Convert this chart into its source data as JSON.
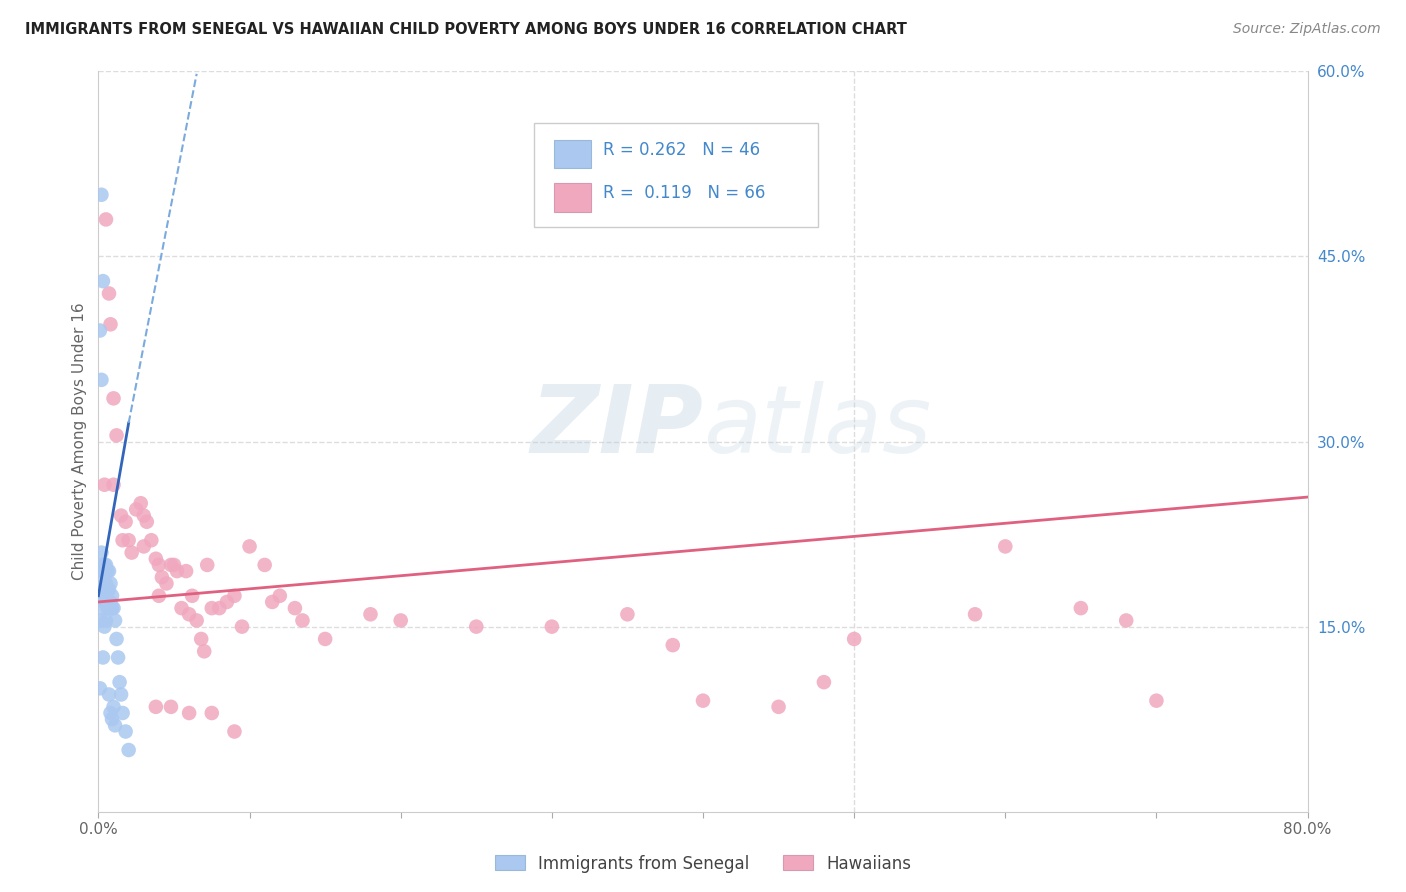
{
  "title": "IMMIGRANTS FROM SENEGAL VS HAWAIIAN CHILD POVERTY AMONG BOYS UNDER 16 CORRELATION CHART",
  "source": "Source: ZipAtlas.com",
  "ylabel": "Child Poverty Among Boys Under 16",
  "xlim": [
    0.0,
    0.8
  ],
  "ylim": [
    0.0,
    0.6
  ],
  "xtick_positions": [
    0.0,
    0.1,
    0.2,
    0.3,
    0.4,
    0.5,
    0.6,
    0.7,
    0.8
  ],
  "xticklabels": [
    "0.0%",
    "",
    "",
    "",
    "",
    "",
    "",
    "",
    "80.0%"
  ],
  "ytick_positions": [
    0.15,
    0.3,
    0.45,
    0.6
  ],
  "ytick_labels": [
    "15.0%",
    "30.0%",
    "45.0%",
    "60.0%"
  ],
  "color_blue": "#aac8f0",
  "color_pink": "#f0a8bf",
  "color_blue_text": "#4488cc",
  "trendline_blue_solid": "#3366bb",
  "trendline_blue_dash": "#7aaade",
  "trendline_pink": "#e06080",
  "grid_color": "#dddddd",
  "background_color": "#ffffff",
  "watermark_color": "#c5d8ec",
  "blue_scatter_x": [
    0.001,
    0.001,
    0.001,
    0.002,
    0.002,
    0.002,
    0.002,
    0.003,
    0.003,
    0.003,
    0.004,
    0.004,
    0.004,
    0.004,
    0.005,
    0.005,
    0.005,
    0.005,
    0.006,
    0.006,
    0.006,
    0.007,
    0.007,
    0.007,
    0.007,
    0.008,
    0.008,
    0.008,
    0.009,
    0.009,
    0.009,
    0.01,
    0.01,
    0.011,
    0.011,
    0.012,
    0.013,
    0.014,
    0.015,
    0.016,
    0.018,
    0.02,
    0.002,
    0.003,
    0.001,
    0.002
  ],
  "blue_scatter_y": [
    0.195,
    0.165,
    0.1,
    0.21,
    0.195,
    0.175,
    0.155,
    0.2,
    0.18,
    0.125,
    0.2,
    0.185,
    0.17,
    0.15,
    0.2,
    0.185,
    0.17,
    0.155,
    0.195,
    0.18,
    0.165,
    0.195,
    0.18,
    0.165,
    0.095,
    0.185,
    0.17,
    0.08,
    0.175,
    0.165,
    0.075,
    0.165,
    0.085,
    0.155,
    0.07,
    0.14,
    0.125,
    0.105,
    0.095,
    0.08,
    0.065,
    0.05,
    0.5,
    0.43,
    0.39,
    0.35
  ],
  "pink_scatter_x": [
    0.004,
    0.005,
    0.007,
    0.008,
    0.01,
    0.01,
    0.012,
    0.015,
    0.016,
    0.018,
    0.02,
    0.022,
    0.025,
    0.028,
    0.03,
    0.03,
    0.032,
    0.035,
    0.038,
    0.04,
    0.04,
    0.042,
    0.045,
    0.048,
    0.05,
    0.052,
    0.055,
    0.058,
    0.06,
    0.062,
    0.065,
    0.068,
    0.07,
    0.072,
    0.075,
    0.08,
    0.085,
    0.09,
    0.095,
    0.1,
    0.11,
    0.115,
    0.12,
    0.13,
    0.135,
    0.15,
    0.18,
    0.2,
    0.25,
    0.3,
    0.35,
    0.38,
    0.4,
    0.45,
    0.48,
    0.5,
    0.58,
    0.6,
    0.65,
    0.68,
    0.7,
    0.038,
    0.048,
    0.06,
    0.075,
    0.09
  ],
  "pink_scatter_y": [
    0.265,
    0.48,
    0.42,
    0.395,
    0.335,
    0.265,
    0.305,
    0.24,
    0.22,
    0.235,
    0.22,
    0.21,
    0.245,
    0.25,
    0.24,
    0.215,
    0.235,
    0.22,
    0.205,
    0.2,
    0.175,
    0.19,
    0.185,
    0.2,
    0.2,
    0.195,
    0.165,
    0.195,
    0.16,
    0.175,
    0.155,
    0.14,
    0.13,
    0.2,
    0.165,
    0.165,
    0.17,
    0.175,
    0.15,
    0.215,
    0.2,
    0.17,
    0.175,
    0.165,
    0.155,
    0.14,
    0.16,
    0.155,
    0.15,
    0.15,
    0.16,
    0.135,
    0.09,
    0.085,
    0.105,
    0.14,
    0.16,
    0.215,
    0.165,
    0.155,
    0.09,
    0.085,
    0.085,
    0.08,
    0.08,
    0.065
  ],
  "blue_trend_x0": 0.0,
  "blue_trend_y0": 0.175,
  "blue_trend_x1": 0.02,
  "blue_trend_y1": 0.315,
  "blue_trend_dash_x0": 0.02,
  "blue_trend_dash_y0": 0.315,
  "blue_trend_dash_x1": 0.065,
  "blue_trend_dash_y1": 0.598,
  "pink_trend_x0": 0.0,
  "pink_trend_y0": 0.17,
  "pink_trend_x1": 0.8,
  "pink_trend_y1": 0.255
}
